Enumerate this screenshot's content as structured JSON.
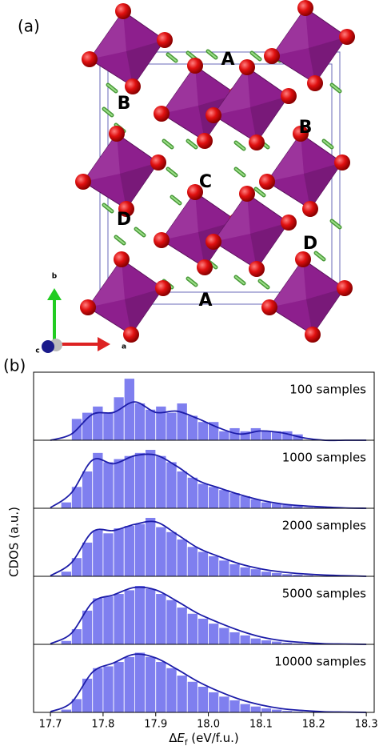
{
  "panel_a": {
    "label": "(a)",
    "site_labels": [
      "A",
      "B",
      "B",
      "C",
      "D",
      "D",
      "A"
    ],
    "axis_labels": [
      "b",
      "c",
      "a"
    ]
  },
  "panel_b": {
    "label": "(b)",
    "ylabel": "CDOS (a.u.)",
    "xlabel": [
      "Δ",
      "E",
      "f",
      " (eV/f.u.)"
    ]
  },
  "chart_data": [
    {
      "type": "histogram",
      "label": "100 samples",
      "color": "#7f7fef",
      "line_color": "#1c1ca8",
      "xlim": [
        17.668,
        18.315
      ],
      "ylim": [
        0,
        1.1
      ],
      "bins": [
        17.7,
        17.72,
        17.74,
        17.76,
        17.78,
        17.8,
        17.82,
        17.84,
        17.86,
        17.88,
        17.9,
        17.92,
        17.94,
        17.96,
        17.98,
        18.0,
        18.02,
        18.04,
        18.06,
        18.08,
        18.1,
        18.12,
        18.14,
        18.16,
        18.18,
        18.2,
        18.22,
        18.24,
        18.26,
        18.28,
        18.3
      ],
      "values": [
        0,
        0,
        0.35,
        0.45,
        0.55,
        0.45,
        0.7,
        1.0,
        0.6,
        0.5,
        0.55,
        0.45,
        0.6,
        0.4,
        0.3,
        0.3,
        0.15,
        0.2,
        0.15,
        0.2,
        0.15,
        0.15,
        0.15,
        0.1,
        0,
        0,
        0,
        0,
        0,
        0
      ],
      "kde": {
        "x": [
          17.7,
          17.74,
          17.78,
          17.82,
          17.86,
          17.9,
          17.94,
          17.98,
          18.02,
          18.06,
          18.1,
          18.14,
          18.18,
          18.22,
          18.26,
          18.3
        ],
        "values": [
          0,
          0.1,
          0.42,
          0.45,
          0.62,
          0.45,
          0.47,
          0.35,
          0.2,
          0.1,
          0.15,
          0.12,
          0.04,
          0,
          0,
          0
        ]
      }
    },
    {
      "type": "histogram",
      "label": "1000 samples",
      "color": "#7f7fef",
      "line_color": "#1c1ca8",
      "xlim": [
        17.668,
        18.315
      ],
      "ylim": [
        0,
        1.1
      ],
      "bins": [
        17.7,
        17.72,
        17.74,
        17.76,
        17.78,
        17.8,
        17.82,
        17.84,
        17.86,
        17.88,
        17.9,
        17.92,
        17.94,
        17.96,
        17.98,
        18.0,
        18.02,
        18.04,
        18.06,
        18.08,
        18.1,
        18.12,
        18.14,
        18.16,
        18.18,
        18.2,
        18.22,
        18.24,
        18.26,
        18.28,
        18.3
      ],
      "values": [
        0,
        0.1,
        0.35,
        0.6,
        0.9,
        0.75,
        0.8,
        0.85,
        0.9,
        0.95,
        0.85,
        0.75,
        0.6,
        0.5,
        0.4,
        0.35,
        0.3,
        0.25,
        0.2,
        0.15,
        0.1,
        0.08,
        0.06,
        0.04,
        0.02,
        0.02,
        0,
        0,
        0,
        0
      ],
      "kde": {
        "x": [
          17.7,
          17.74,
          17.78,
          17.82,
          17.86,
          17.9,
          17.94,
          17.98,
          18.02,
          18.06,
          18.1,
          18.14,
          18.18,
          18.22,
          18.26,
          18.3
        ],
        "values": [
          0.01,
          0.25,
          0.78,
          0.72,
          0.85,
          0.86,
          0.68,
          0.45,
          0.33,
          0.22,
          0.13,
          0.07,
          0.04,
          0.02,
          0.005,
          0
        ]
      }
    },
    {
      "type": "histogram",
      "label": "2000 samples",
      "color": "#7f7fef",
      "line_color": "#1c1ca8",
      "xlim": [
        17.668,
        18.315
      ],
      "ylim": [
        0,
        1.1
      ],
      "bins": [
        17.7,
        17.72,
        17.74,
        17.76,
        17.78,
        17.8,
        17.82,
        17.84,
        17.86,
        17.88,
        17.9,
        17.92,
        17.94,
        17.96,
        17.98,
        18.0,
        18.02,
        18.04,
        18.06,
        18.08,
        18.1,
        18.12,
        18.14,
        18.16,
        18.18,
        18.2,
        18.22,
        18.24,
        18.26,
        18.28,
        18.3
      ],
      "values": [
        0.02,
        0.08,
        0.3,
        0.55,
        0.75,
        0.7,
        0.78,
        0.82,
        0.85,
        0.95,
        0.8,
        0.72,
        0.6,
        0.48,
        0.4,
        0.33,
        0.26,
        0.2,
        0.15,
        0.12,
        0.08,
        0.06,
        0.04,
        0.03,
        0.02,
        0.01,
        0.01,
        0,
        0,
        0
      ],
      "kde": {
        "x": [
          17.7,
          17.74,
          17.78,
          17.82,
          17.86,
          17.9,
          17.94,
          17.98,
          18.02,
          18.06,
          18.1,
          18.14,
          18.18,
          18.22,
          18.26,
          18.3
        ],
        "values": [
          0.01,
          0.22,
          0.72,
          0.74,
          0.84,
          0.88,
          0.68,
          0.46,
          0.32,
          0.2,
          0.12,
          0.07,
          0.04,
          0.02,
          0.01,
          0
        ]
      }
    },
    {
      "type": "histogram",
      "label": "5000 samples",
      "color": "#7f7fef",
      "line_color": "#1c1ca8",
      "xlim": [
        17.668,
        18.315
      ],
      "ylim": [
        0,
        1.1
      ],
      "bins": [
        17.7,
        17.72,
        17.74,
        17.76,
        17.78,
        17.8,
        17.82,
        17.84,
        17.86,
        17.88,
        17.9,
        17.92,
        17.94,
        17.96,
        17.98,
        18.0,
        18.02,
        18.04,
        18.06,
        18.08,
        18.1,
        18.12,
        18.14,
        18.16,
        18.18,
        18.2,
        18.22,
        18.24,
        18.26,
        18.28,
        18.3
      ],
      "values": [
        0.01,
        0.06,
        0.25,
        0.55,
        0.75,
        0.78,
        0.82,
        0.88,
        0.95,
        0.9,
        0.82,
        0.72,
        0.6,
        0.5,
        0.42,
        0.34,
        0.27,
        0.2,
        0.15,
        0.1,
        0.07,
        0.05,
        0.03,
        0.02,
        0.01,
        0.01,
        0,
        0,
        0,
        0
      ],
      "kde": {
        "x": [
          17.7,
          17.74,
          17.78,
          17.82,
          17.86,
          17.9,
          17.94,
          17.98,
          18.02,
          18.06,
          18.1,
          18.14,
          18.18,
          18.22,
          18.26,
          18.3
        ],
        "values": [
          0.01,
          0.18,
          0.68,
          0.8,
          0.92,
          0.88,
          0.7,
          0.5,
          0.35,
          0.22,
          0.12,
          0.06,
          0.03,
          0.01,
          0.005,
          0
        ]
      }
    },
    {
      "type": "histogram",
      "label": "10000 samples",
      "color": "#7f7fef",
      "line_color": "#1c1ca8",
      "xlim": [
        17.668,
        18.315
      ],
      "ylim": [
        0,
        1.1
      ],
      "bins": [
        17.7,
        17.72,
        17.74,
        17.76,
        17.78,
        17.8,
        17.82,
        17.84,
        17.86,
        17.88,
        17.9,
        17.92,
        17.94,
        17.96,
        17.98,
        18.0,
        18.02,
        18.04,
        18.06,
        18.08,
        18.1,
        18.12,
        18.14,
        18.16,
        18.18,
        18.2,
        18.22,
        18.24,
        18.26,
        18.28,
        18.3
      ],
      "values": [
        0.01,
        0.05,
        0.22,
        0.55,
        0.72,
        0.75,
        0.82,
        0.9,
        0.97,
        0.9,
        0.82,
        0.72,
        0.6,
        0.5,
        0.42,
        0.33,
        0.26,
        0.2,
        0.14,
        0.1,
        0.07,
        0.05,
        0.03,
        0.02,
        0.01,
        0.005,
        0,
        0,
        0,
        0
      ],
      "kde": {
        "x": [
          17.7,
          17.74,
          17.78,
          17.82,
          17.86,
          17.9,
          17.94,
          17.98,
          18.02,
          18.06,
          18.1,
          18.14,
          18.18,
          18.22,
          18.26,
          18.3
        ],
        "values": [
          0.01,
          0.16,
          0.65,
          0.8,
          0.94,
          0.88,
          0.7,
          0.5,
          0.34,
          0.21,
          0.12,
          0.06,
          0.03,
          0.01,
          0.005,
          0
        ]
      },
      "xticks": [
        17.7,
        17.8,
        17.9,
        {
          "value": 18,
          "label": "18.0"
        },
        18.1,
        18.2,
        18.3
      ]
    }
  ]
}
